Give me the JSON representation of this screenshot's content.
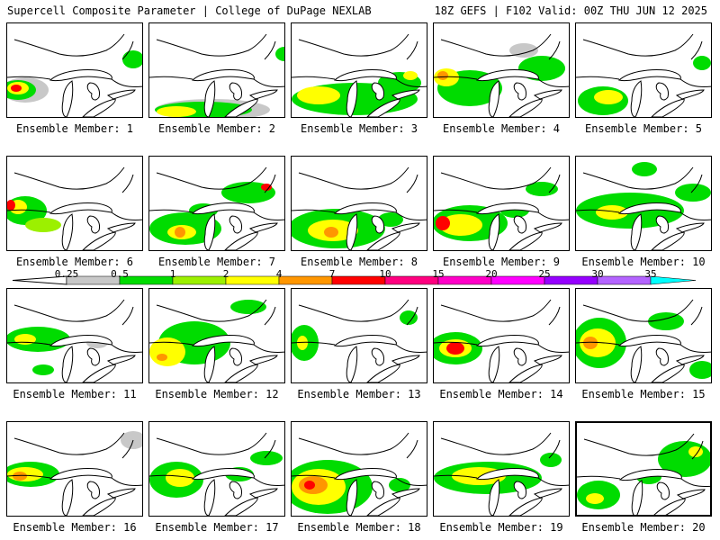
{
  "header": {
    "title_left": "Supercell Composite Parameter | College of DuPage NEXLAB",
    "title_right": "18Z GEFS | F102 Valid: 00Z THU JUN 12 2025"
  },
  "colorbar": {
    "labels": [
      "0.25",
      "0.5",
      "1",
      "2",
      "4",
      "7",
      "10",
      "15",
      "20",
      "25",
      "30",
      "35"
    ],
    "colors": [
      "#c8c8c8",
      "#00dc00",
      "#9cf000",
      "#ffff00",
      "#ff9600",
      "#ff0000",
      "#ff0080",
      "#ff00c8",
      "#ff00ff",
      "#9600ff",
      "#b464ff",
      "#00ffff"
    ]
  },
  "members": [
    {
      "label": "Ensemble Member: 1"
    },
    {
      "label": "Ensemble Member: 2"
    },
    {
      "label": "Ensemble Member: 3"
    },
    {
      "label": "Ensemble Member: 4"
    },
    {
      "label": "Ensemble Member: 5"
    },
    {
      "label": "Ensemble Member: 6"
    },
    {
      "label": "Ensemble Member: 7"
    },
    {
      "label": "Ensemble Member: 8"
    },
    {
      "label": "Ensemble Member: 9"
    },
    {
      "label": "Ensemble Member: 10"
    },
    {
      "label": "Ensemble Member: 11"
    },
    {
      "label": "Ensemble Member: 12"
    },
    {
      "label": "Ensemble Member: 13"
    },
    {
      "label": "Ensemble Member: 14"
    },
    {
      "label": "Ensemble Member: 15"
    },
    {
      "label": "Ensemble Member: 16"
    },
    {
      "label": "Ensemble Member: 17"
    },
    {
      "label": "Ensemble Member: 18"
    },
    {
      "label": "Ensemble Member: 19"
    },
    {
      "label": "Ensemble Member: 20"
    }
  ]
}
